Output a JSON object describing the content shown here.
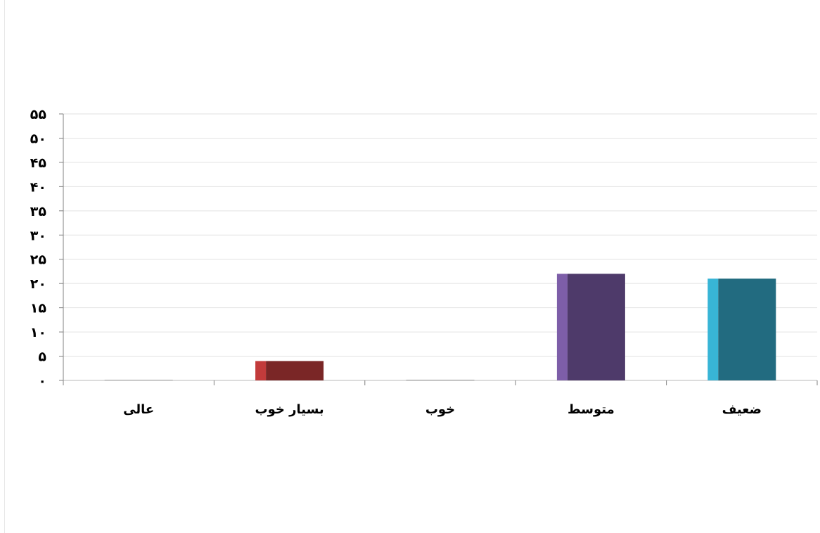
{
  "chart_data": {
    "type": "bar",
    "categories": [
      "عالی",
      "بسیار خوب",
      "خوب",
      "متوسط",
      "ضعیف"
    ],
    "values": [
      0,
      4,
      0,
      22,
      21
    ],
    "ylim": [
      0,
      55
    ],
    "yticks": [
      0,
      5,
      10,
      15,
      20,
      25,
      30,
      35,
      40,
      45,
      50,
      55
    ],
    "ytick_labels": [
      "۰",
      "۵",
      "۱۰",
      "۱۵",
      "۲۰",
      "۲۵",
      "۳۰",
      "۳۵",
      "۴۰",
      "۴۵",
      "۵۰",
      "۵۵"
    ],
    "grid": true,
    "legend": "none",
    "bar_colors": [
      {
        "front": "#8a8a8a",
        "side": "#b0b0b0"
      },
      {
        "front": "#7a2626",
        "side": "#c23b3b"
      },
      {
        "front": "#777777",
        "side": "#a0a0a0"
      },
      {
        "front": "#4e3a6a",
        "side": "#7d5ea8"
      },
      {
        "front": "#226b80",
        "side": "#38b5d6"
      }
    ]
  }
}
